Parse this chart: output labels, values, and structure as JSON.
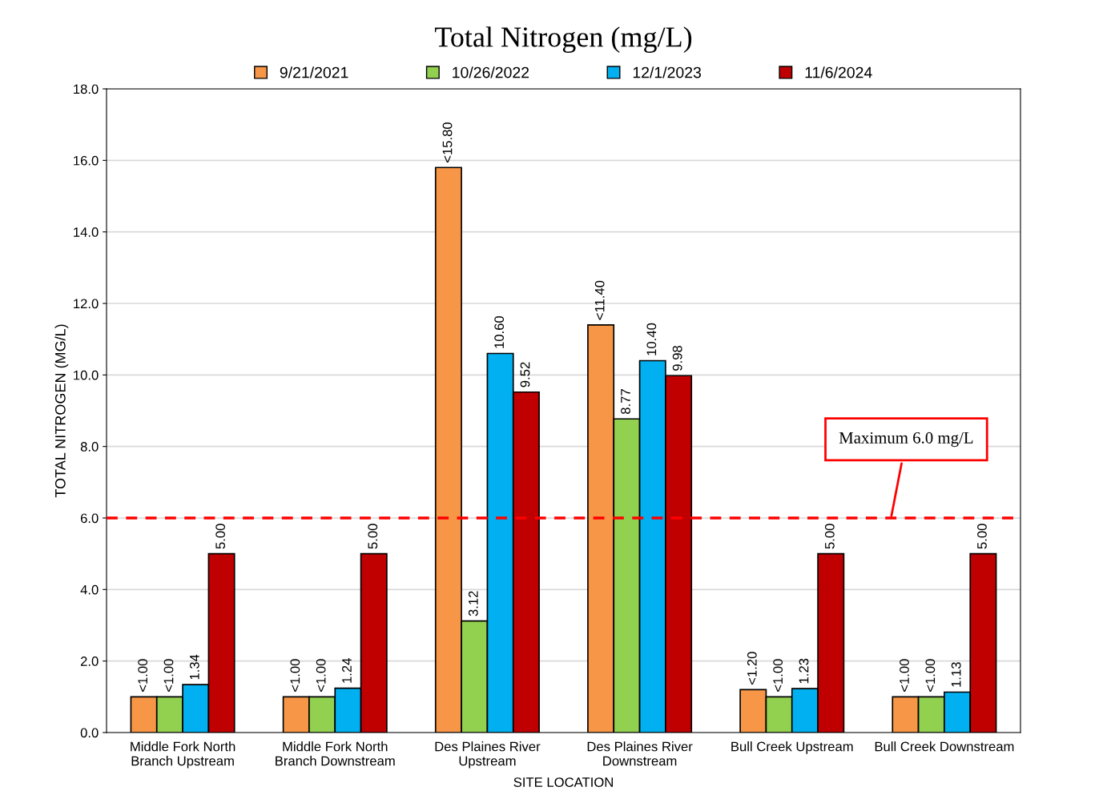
{
  "chart_data": {
    "type": "bar",
    "title": "Total Nitrogen (mg/L)",
    "xlabel": "SITE LOCATION",
    "ylabel": "TOTAL NITROGEN (MG/L)",
    "categories": [
      "Middle Fork North\nBranch Upstream",
      "Middle Fork North\nBranch Downstream",
      "Des Plaines River\nUpstream",
      "Des Plaines River\nDownstream",
      "Bull Creek Upstream",
      "Bull Creek Downstream"
    ],
    "series": [
      {
        "name": "9/21/2021",
        "color": "#f79646",
        "values": [
          1.0,
          1.0,
          15.8,
          11.4,
          1.2,
          1.0
        ],
        "value_labels": [
          "<1.00",
          "<1.00",
          "<15.80",
          "<11.40",
          "<1.20",
          "<1.00"
        ]
      },
      {
        "name": "10/26/2022",
        "color": "#92d050",
        "values": [
          1.0,
          1.0,
          3.12,
          8.77,
          1.0,
          1.0
        ],
        "value_labels": [
          "<1.00",
          "<1.00",
          "3.12",
          "8.77",
          "<1.00",
          "<1.00"
        ]
      },
      {
        "name": "12/1/2023",
        "color": "#00b0f0",
        "values": [
          1.34,
          1.24,
          10.6,
          10.4,
          1.23,
          1.13
        ],
        "value_labels": [
          "1.34",
          "1.24",
          "10.60",
          "10.40",
          "1.23",
          "1.13"
        ]
      },
      {
        "name": "11/6/2024",
        "color": "#c00000",
        "values": [
          5.0,
          5.0,
          9.52,
          9.98,
          5.0,
          5.0
        ],
        "value_labels": [
          "5.00",
          "5.00",
          "9.52",
          "9.98",
          "5.00",
          "5.00"
        ]
      }
    ],
    "ylim": [
      0,
      18
    ],
    "yticks": [
      {
        "value": 0,
        "label": "0.0"
      },
      {
        "value": 2,
        "label": "2.0"
      },
      {
        "value": 4,
        "label": "4.0"
      },
      {
        "value": 6,
        "label": "6.0"
      },
      {
        "value": 8,
        "label": "8.0"
      },
      {
        "value": 10,
        "label": "10.0"
      },
      {
        "value": 12,
        "label": "12.0"
      },
      {
        "value": 14,
        "label": "14.0"
      },
      {
        "value": 16,
        "label": "16.0"
      },
      {
        "value": 18,
        "label": "18.0"
      }
    ],
    "ref_lines": [
      {
        "axis": "y",
        "value": 6.0,
        "label": "Maximum 6.0 mg/L",
        "color": "#ff0000",
        "line_style": "dashed"
      }
    ],
    "grid": "y",
    "legend": "top"
  }
}
